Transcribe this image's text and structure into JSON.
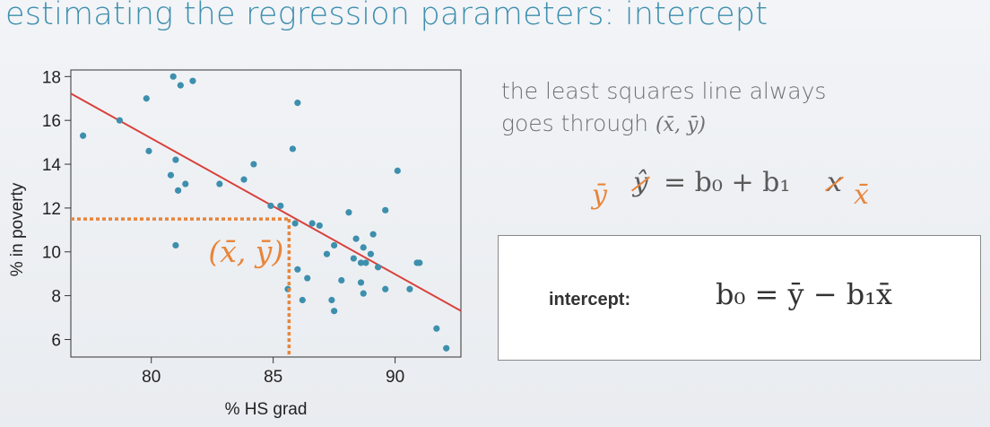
{
  "slide": {
    "title": "estimating the regression parameters: intercept"
  },
  "note": {
    "line1": "the least squares line always",
    "line2_prefix": "goes through ",
    "line2_math": "(x̄, ȳ)"
  },
  "equation": {
    "y_hat": "ŷ",
    "equals_b0_plus_b1": "= b₀ + b₁",
    "x": "x",
    "substitute_y": "ȳ",
    "substitute_x": "x̄"
  },
  "intercept_box": {
    "label": "intercept:",
    "formula": "b₀ = ȳ − b₁x̄"
  },
  "colors": {
    "title": "#3e8fae",
    "points": "#3d8fad",
    "regression_line": "#d9403a",
    "highlight": "#e8853a"
  },
  "chart_data": {
    "type": "scatter",
    "xlabel": "% HS grad",
    "ylabel": "% in poverty",
    "xlim": [
      76.7,
      92.7
    ],
    "ylim": [
      5.2,
      18.3
    ],
    "xticks": [
      80,
      85,
      90
    ],
    "yticks": [
      6,
      8,
      10,
      12,
      14,
      16,
      18
    ],
    "grid": false,
    "points": [
      [
        77.2,
        15.3
      ],
      [
        78.7,
        16.0
      ],
      [
        79.8,
        17.0
      ],
      [
        79.9,
        14.6
      ],
      [
        80.9,
        18.0
      ],
      [
        81.2,
        17.6
      ],
      [
        81.7,
        17.8
      ],
      [
        80.8,
        13.5
      ],
      [
        81.0,
        14.2
      ],
      [
        81.1,
        12.8
      ],
      [
        81.4,
        13.1
      ],
      [
        81.0,
        10.3
      ],
      [
        82.8,
        13.1
      ],
      [
        83.8,
        13.3
      ],
      [
        84.2,
        14.0
      ],
      [
        84.9,
        12.1
      ],
      [
        85.3,
        12.1
      ],
      [
        85.8,
        14.7
      ],
      [
        86.0,
        16.8
      ],
      [
        85.9,
        11.3
      ],
      [
        86.6,
        11.3
      ],
      [
        86.9,
        11.2
      ],
      [
        85.6,
        8.3
      ],
      [
        86.0,
        9.2
      ],
      [
        86.4,
        8.8
      ],
      [
        86.2,
        7.8
      ],
      [
        87.2,
        9.9
      ],
      [
        87.5,
        10.3
      ],
      [
        87.4,
        7.8
      ],
      [
        87.5,
        7.3
      ],
      [
        87.8,
        8.7
      ],
      [
        88.1,
        11.8
      ],
      [
        88.3,
        9.7
      ],
      [
        88.4,
        10.6
      ],
      [
        88.7,
        10.2
      ],
      [
        89.1,
        10.8
      ],
      [
        88.6,
        9.5
      ],
      [
        88.8,
        9.5
      ],
      [
        89.0,
        9.9
      ],
      [
        88.6,
        8.6
      ],
      [
        88.7,
        8.1
      ],
      [
        89.3,
        9.3
      ],
      [
        89.6,
        11.9
      ],
      [
        89.6,
        8.3
      ],
      [
        90.1,
        13.7
      ],
      [
        90.6,
        8.3
      ],
      [
        90.9,
        9.5
      ],
      [
        91.0,
        9.5
      ],
      [
        91.7,
        6.5
      ],
      [
        92.1,
        5.6
      ]
    ],
    "regression": {
      "intercept": 64.78,
      "slope": -0.62
    },
    "mean_point": {
      "x": 85.65,
      "y": 11.5,
      "label": "(x̄, ȳ)"
    }
  }
}
